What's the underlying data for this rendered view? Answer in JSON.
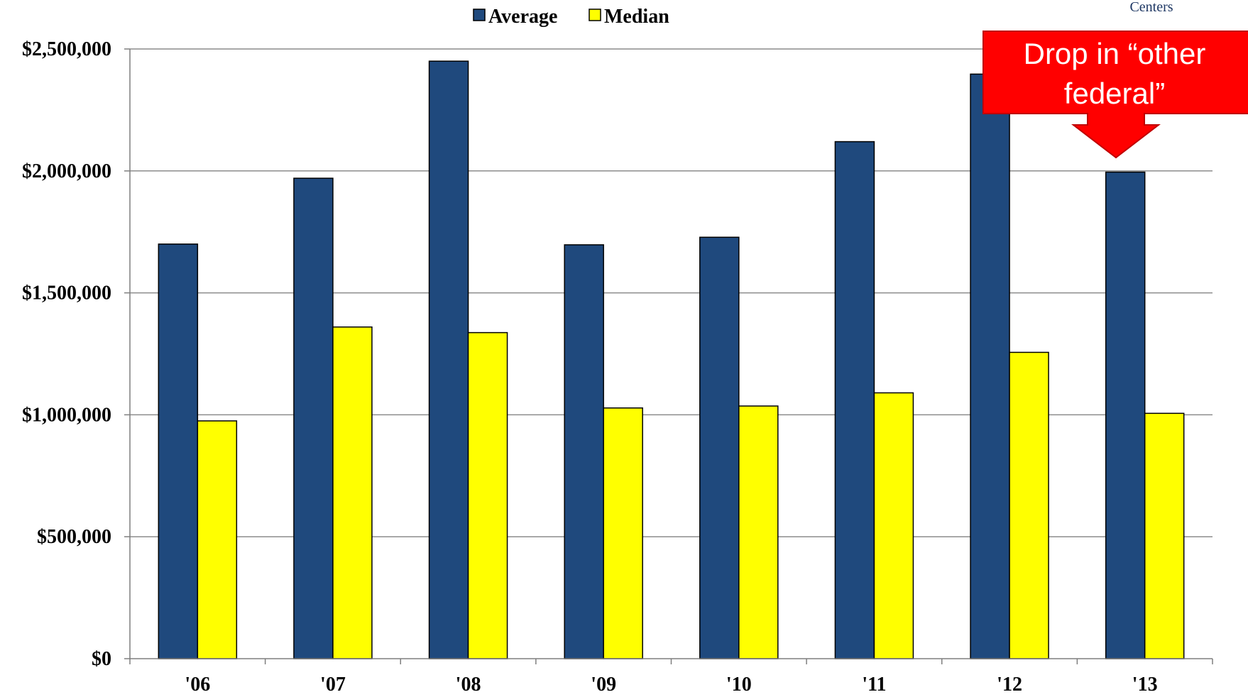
{
  "corner_note": "Centers",
  "callout": {
    "line1": "Drop in “other",
    "line2": "federal”"
  },
  "colors": {
    "average": "#1F497D",
    "median": "#FFFF00",
    "callout_fill": "#FF0000",
    "corner_note": "#1F3864"
  },
  "chart_data": {
    "type": "bar",
    "categories": [
      "'06",
      "'07",
      "'08",
      "'09",
      "'10",
      "'11",
      "'12",
      "'13"
    ],
    "series": [
      {
        "name": "Average",
        "values": [
          1700000,
          1970000,
          2450000,
          1697000,
          1728000,
          2120000,
          2397000,
          1995000
        ]
      },
      {
        "name": "Median",
        "values": [
          975000,
          1360000,
          1337000,
          1028000,
          1036000,
          1090000,
          1256000,
          1006000
        ]
      }
    ],
    "ylim": [
      0,
      2500000
    ],
    "yticks": [
      {
        "value": 0,
        "label": "$0"
      },
      {
        "value": 500000,
        "label": "$500,000"
      },
      {
        "value": 1000000,
        "label": "$1,000,000"
      },
      {
        "value": 1500000,
        "label": "$1,500,000"
      },
      {
        "value": 2000000,
        "label": "$2,000,000"
      },
      {
        "value": 2500000,
        "label": "$2,500,000"
      }
    ],
    "grid": true,
    "legend_position": "top-center"
  }
}
